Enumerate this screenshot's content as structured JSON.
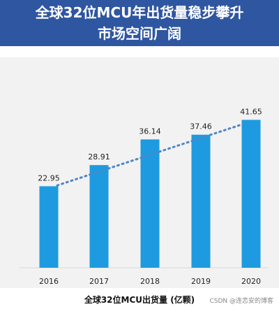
{
  "header": {
    "title_line1": "全球32位MCU年出货量稳步攀升",
    "title_line2": "市场空间广阔",
    "background_color": "#2f56a0"
  },
  "chart_data": {
    "type": "bar",
    "categories": [
      "2016",
      "2017",
      "2018",
      "2019",
      "2020"
    ],
    "values": [
      22.95,
      28.91,
      36.14,
      37.46,
      41.65
    ],
    "data_labels": [
      "22.95",
      "28.91",
      "36.14",
      "37.46",
      "41.65"
    ],
    "xlabel": "全球32位MCU出货量 (亿颗)",
    "ylabel": "",
    "ylim": [
      0,
      48
    ],
    "bar_color": "#1e9be0",
    "trendline": {
      "style": "dotted",
      "color": "#4f86c6",
      "x": [
        "2016",
        "2020"
      ],
      "y": [
        22.0,
        42.0
      ]
    },
    "grid": false,
    "legend": "none"
  },
  "watermark": "CSDN @连恋安的博客"
}
